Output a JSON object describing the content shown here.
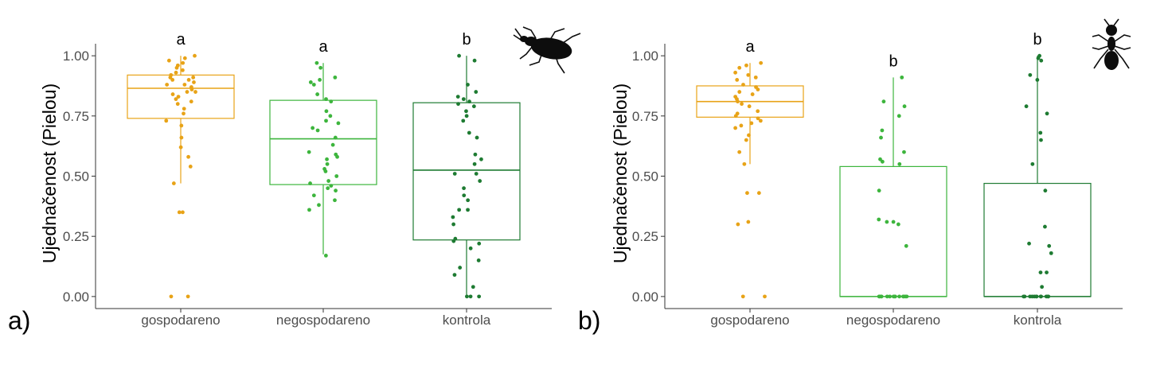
{
  "chart_data": [
    {
      "type": "box",
      "panel_label": "a)",
      "ylabel": "Ujednačenost (Pielou)",
      "xlabel": "",
      "ylim": [
        -0.05,
        1.05
      ],
      "yticks": [
        0,
        0.25,
        0.5,
        0.75,
        1
      ],
      "ytick_labels": [
        "0.00",
        "0.25",
        "0.50",
        "0.75",
        "1.00"
      ],
      "icon": "beetle-icon",
      "groups": [
        {
          "name": "gospodareno",
          "color": "#E8A317",
          "letter": "a",
          "q1": 0.74,
          "median": 0.865,
          "q3": 0.92,
          "whisker_low": 0.47,
          "whisker_high": 1.0,
          "points": [
            0.0,
            0.0,
            0.35,
            0.35,
            0.47,
            0.54,
            0.58,
            0.62,
            0.66,
            0.71,
            0.73,
            0.76,
            0.78,
            0.8,
            0.81,
            0.82,
            0.83,
            0.84,
            0.85,
            0.85,
            0.86,
            0.87,
            0.88,
            0.88,
            0.89,
            0.9,
            0.9,
            0.91,
            0.91,
            0.92,
            0.93,
            0.94,
            0.95,
            0.96,
            0.97,
            0.98,
            0.99,
            1.0
          ]
        },
        {
          "name": "negospodareno",
          "color": "#3DB53D",
          "letter": "a",
          "q1": 0.465,
          "median": 0.655,
          "q3": 0.815,
          "whisker_low": 0.175,
          "whisker_high": 0.97,
          "points": [
            0.17,
            0.36,
            0.38,
            0.4,
            0.42,
            0.44,
            0.45,
            0.46,
            0.47,
            0.48,
            0.5,
            0.52,
            0.53,
            0.55,
            0.57,
            0.58,
            0.59,
            0.6,
            0.63,
            0.66,
            0.69,
            0.7,
            0.72,
            0.73,
            0.75,
            0.77,
            0.81,
            0.82,
            0.84,
            0.88,
            0.89,
            0.9,
            0.91,
            0.95,
            0.97
          ]
        },
        {
          "name": "kontrola",
          "color": "#1E7B32",
          "letter": "b",
          "q1": 0.235,
          "median": 0.525,
          "q3": 0.805,
          "whisker_low": 0.0,
          "whisker_high": 1.0,
          "points": [
            0.0,
            0.0,
            0.0,
            0.04,
            0.09,
            0.12,
            0.15,
            0.2,
            0.22,
            0.23,
            0.24,
            0.3,
            0.33,
            0.36,
            0.36,
            0.4,
            0.42,
            0.45,
            0.48,
            0.51,
            0.51,
            0.55,
            0.57,
            0.59,
            0.66,
            0.68,
            0.73,
            0.75,
            0.77,
            0.79,
            0.8,
            0.81,
            0.82,
            0.83,
            0.85,
            0.88,
            0.98,
            1.0
          ]
        }
      ]
    },
    {
      "type": "box",
      "panel_label": "b)",
      "ylabel": "Ujednačenost (Pielou)",
      "xlabel": "",
      "ylim": [
        -0.05,
        1.05
      ],
      "yticks": [
        0,
        0.25,
        0.5,
        0.75,
        1
      ],
      "ytick_labels": [
        "0.00",
        "0.25",
        "0.50",
        "0.75",
        "1.00"
      ],
      "icon": "ant-icon",
      "groups": [
        {
          "name": "gospodareno",
          "color": "#E8A317",
          "letter": "a",
          "q1": 0.745,
          "median": 0.81,
          "q3": 0.875,
          "whisker_low": 0.55,
          "whisker_high": 0.97,
          "points": [
            0.0,
            0.0,
            0.3,
            0.31,
            0.43,
            0.43,
            0.55,
            0.6,
            0.65,
            0.67,
            0.7,
            0.71,
            0.72,
            0.73,
            0.74,
            0.75,
            0.76,
            0.77,
            0.79,
            0.8,
            0.81,
            0.82,
            0.83,
            0.84,
            0.85,
            0.86,
            0.87,
            0.88,
            0.9,
            0.91,
            0.92,
            0.93,
            0.95,
            0.96,
            0.97
          ]
        },
        {
          "name": "negospodareno",
          "color": "#3DB53D",
          "letter": "b",
          "q1": 0.0,
          "median": 0.0,
          "q3": 0.54,
          "whisker_low": 0.0,
          "whisker_high": 0.91,
          "points": [
            0.0,
            0.0,
            0.0,
            0.0,
            0.0,
            0.0,
            0.0,
            0.0,
            0.0,
            0.0,
            0.0,
            0.0,
            0.0,
            0.0,
            0.21,
            0.3,
            0.31,
            0.31,
            0.32,
            0.44,
            0.55,
            0.56,
            0.57,
            0.6,
            0.66,
            0.69,
            0.75,
            0.79,
            0.81,
            0.91
          ]
        },
        {
          "name": "kontrola",
          "color": "#1E7B32",
          "letter": "b",
          "q1": 0.0,
          "median": 0.0,
          "q3": 0.47,
          "whisker_low": 0.0,
          "whisker_high": 1.0,
          "points": [
            0.0,
            0.0,
            0.0,
            0.0,
            0.0,
            0.0,
            0.0,
            0.0,
            0.0,
            0.0,
            0.0,
            0.0,
            0.04,
            0.1,
            0.1,
            0.18,
            0.21,
            0.22,
            0.29,
            0.44,
            0.55,
            0.65,
            0.68,
            0.76,
            0.79,
            0.9,
            0.92,
            0.98,
            0.99,
            1.0
          ]
        }
      ]
    }
  ]
}
